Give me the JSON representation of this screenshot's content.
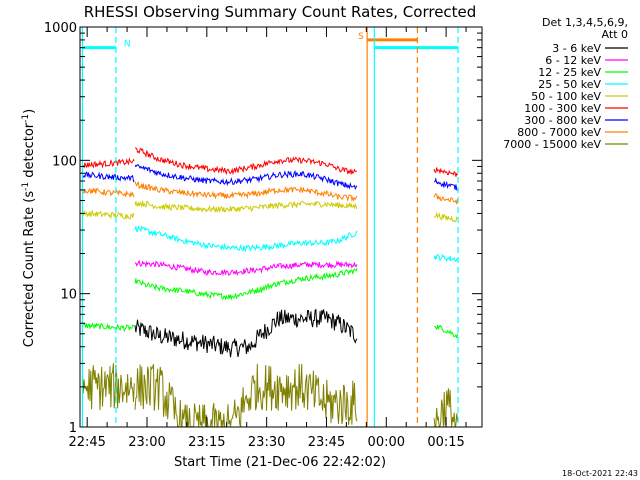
{
  "chart_data": {
    "type": "line",
    "title": "RHESSI Observing Summary Count Rates, Corrected",
    "xlabel": "Start Time (21-Dec-06 22:42:02)",
    "ylabel_parts": [
      "Corrected Count Rate (s",
      "-1",
      " detector",
      "-1",
      ")"
    ],
    "ylabel": "Corrected Count Rate (s-1 detector-1)",
    "y_scale": "log",
    "ylim": [
      1,
      1000
    ],
    "y_ticks": [
      {
        "v": 1,
        "label": "1"
      },
      {
        "v": 10,
        "label": "10"
      },
      {
        "v": 100,
        "label": "100"
      },
      {
        "v": 1000,
        "label": "1000"
      }
    ],
    "xlim": [
      -0.03,
      1.65
    ],
    "x_ticks": [
      {
        "t": 0.0,
        "label": "22:45"
      },
      {
        "t": 0.25,
        "label": "23:00"
      },
      {
        "t": 0.5,
        "label": "23:15"
      },
      {
        "t": 0.75,
        "label": "23:30"
      },
      {
        "t": 1.0,
        "label": "23:45"
      },
      {
        "t": 1.25,
        "label": "00:00"
      },
      {
        "t": 1.5,
        "label": "00:15"
      }
    ],
    "legend_header": [
      "Det 1,3,4,5,6,9,",
      "Att 0"
    ],
    "legend_position": "right",
    "series": [
      {
        "name": "3 - 6 keV",
        "color": "#000000",
        "segments": [
          {
            "t": [
              0.2,
              0.25,
              0.3,
              0.4,
              0.5,
              0.6,
              0.68,
              0.72,
              0.8,
              0.9,
              1.0,
              1.05,
              1.13
            ],
            "v": [
              5.5,
              5.2,
              4.8,
              4.5,
              4.2,
              3.9,
              4.0,
              4.8,
              6.5,
              6.5,
              6.5,
              6.0,
              4.8
            ]
          }
        ]
      },
      {
        "name": "6 - 12 keV",
        "color": "#ff00ff",
        "segments": [
          {
            "t": [
              0.2,
              0.3,
              0.4,
              0.5,
              0.6,
              0.7,
              0.8,
              0.9,
              1.0,
              1.05,
              1.13
            ],
            "v": [
              17,
              16.5,
              15.5,
              14.5,
              14.5,
              15,
              16,
              16.5,
              16.5,
              16.5,
              16.5
            ]
          }
        ]
      },
      {
        "name": "12 - 25 keV",
        "color": "#00ff00",
        "segments": [
          {
            "t": [
              -0.02,
              0.1,
              0.2
            ],
            "v": [
              5.8,
              5.6,
              5.5
            ]
          },
          {
            "t": [
              0.2,
              0.25,
              0.3,
              0.4,
              0.5,
              0.6,
              0.7,
              0.8,
              0.9,
              1.0,
              1.05,
              1.13
            ],
            "v": [
              12.5,
              11.5,
              11,
              10.5,
              9.8,
              9.5,
              10.5,
              12,
              13,
              13.5,
              14,
              15
            ]
          },
          {
            "t": [
              1.45,
              1.5,
              1.55
            ],
            "v": [
              5.8,
              5.3,
              4.8
            ]
          }
        ]
      },
      {
        "name": "25 - 50 keV",
        "color": "#00ffff",
        "segments": [
          {
            "t": [
              0.2,
              0.3,
              0.4,
              0.5,
              0.6,
              0.7,
              0.8,
              0.9,
              1.0,
              1.05,
              1.13
            ],
            "v": [
              31,
              28,
              25,
              23,
              22,
              22,
              23,
              24,
              24,
              25,
              29
            ]
          },
          {
            "t": [
              1.45,
              1.5,
              1.55
            ],
            "v": [
              19,
              18.5,
              18
            ]
          }
        ]
      },
      {
        "name": "50 - 100 keV",
        "color": "#cccc00",
        "segments": [
          {
            "t": [
              -0.02,
              0.1,
              0.2
            ],
            "v": [
              40,
              39,
              38
            ]
          },
          {
            "t": [
              0.2,
              0.25,
              0.3,
              0.4,
              0.5,
              0.6,
              0.7,
              0.8,
              0.9,
              1.0,
              1.05,
              1.13
            ],
            "v": [
              48,
              47,
              45,
              44,
              43,
              43,
              44,
              46,
              47,
              47,
              46,
              45
            ]
          },
          {
            "t": [
              1.45,
              1.5,
              1.55
            ],
            "v": [
              39,
              37,
              36
            ]
          }
        ]
      },
      {
        "name": "100 - 300 keV",
        "color": "#ff0000",
        "segments": [
          {
            "t": [
              -0.02,
              0.1,
              0.2
            ],
            "v": [
              92,
              95,
              98
            ]
          },
          {
            "t": [
              0.2,
              0.25,
              0.3,
              0.4,
              0.5,
              0.6,
              0.7,
              0.8,
              0.9,
              1.0,
              1.05,
              1.13
            ],
            "v": [
              122,
              112,
              102,
              92,
              86,
              83,
              90,
              100,
              100,
              94,
              86,
              80
            ]
          },
          {
            "t": [
              1.45,
              1.5,
              1.55
            ],
            "v": [
              86,
              82,
              78
            ]
          }
        ]
      },
      {
        "name": "300 - 800 keV",
        "color": "#0000ff",
        "segments": [
          {
            "t": [
              -0.02,
              0.1,
              0.2
            ],
            "v": [
              78,
              75,
              73
            ]
          },
          {
            "t": [
              0.2,
              0.25,
              0.3,
              0.4,
              0.5,
              0.6,
              0.7,
              0.8,
              0.9,
              1.0,
              1.05,
              1.13
            ],
            "v": [
              90,
              86,
              80,
              74,
              70,
              69,
              72,
              78,
              79,
              72,
              67,
              62
            ]
          },
          {
            "t": [
              1.45,
              1.5,
              1.55
            ],
            "v": [
              70,
              66,
              62
            ]
          }
        ]
      },
      {
        "name": "800 - 7000 keV",
        "color": "#ff8000",
        "segments": [
          {
            "t": [
              -0.02,
              0.1,
              0.2
            ],
            "v": [
              60,
              57,
              55
            ]
          },
          {
            "t": [
              0.2,
              0.25,
              0.3,
              0.4,
              0.5,
              0.6,
              0.7,
              0.8,
              0.9,
              1.0,
              1.05,
              1.13
            ],
            "v": [
              66,
              63,
              60,
              57,
              55,
              54,
              56,
              60,
              60,
              56,
              53,
              52
            ]
          },
          {
            "t": [
              1.45,
              1.5,
              1.55
            ],
            "v": [
              54,
              51,
              49
            ]
          }
        ]
      },
      {
        "name": "7000 - 15000 keV",
        "color": "#808000",
        "segments": [
          {
            "t": [
              -0.02,
              0.1,
              0.2
            ],
            "v": [
              2.0,
              2.0,
              2.0
            ]
          },
          {
            "t": [
              0.2,
              0.3,
              0.4,
              0.5,
              0.6,
              0.7,
              0.8,
              0.9,
              1.0,
              1.05,
              1.13
            ],
            "v": [
              2.0,
              2.0,
              1.0,
              1.0,
              1.0,
              2.0,
              2.0,
              2.0,
              1.5,
              1.5,
              1.5
            ]
          },
          {
            "t": [
              1.45,
              1.5,
              1.55
            ],
            "v": [
              1.0,
              1.5,
              1.0
            ]
          }
        ]
      }
    ],
    "flags": [
      {
        "label": "N",
        "color": "#00ffff",
        "level": 700,
        "t0": -0.02,
        "t1": 0.12
      },
      {
        "label": "",
        "color": "#00ffff",
        "level": 700,
        "t0": 1.2,
        "t1": 1.55
      },
      {
        "label": "S",
        "color": "#ff8000",
        "level": 800,
        "t0": 1.17,
        "t1": 1.38
      }
    ],
    "vlines": [
      {
        "t": -0.02,
        "color": "#00ffff",
        "dash": false
      },
      {
        "t": 0.12,
        "color": "#00ffff",
        "dash": true
      },
      {
        "t": 1.17,
        "color": "#ff8000",
        "dash": false
      },
      {
        "t": 1.2,
        "color": "#00ffff",
        "dash": false
      },
      {
        "t": 1.38,
        "color": "#ff8000",
        "dash": true
      },
      {
        "t": 1.55,
        "color": "#00ffff",
        "dash": true
      }
    ],
    "timestamp": "18-Oct-2021 22:43"
  }
}
